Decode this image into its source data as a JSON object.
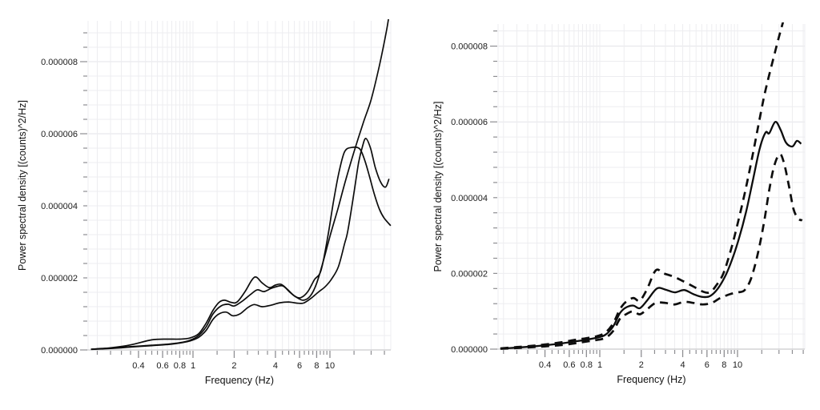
{
  "page": {
    "background": "#ffffff"
  },
  "colors": {
    "curve": "#0d0d0d",
    "grid_minor": "#ededf0",
    "grid_major": "#e3e3e8",
    "axis_line": "#c9c9cc",
    "tick": "#8e8e92",
    "text": "#1c1c1c"
  },
  "chart_data": [
    {
      "id": "psd-left",
      "type": "line",
      "title": "",
      "xlabel": "Frequency (Hz)",
      "ylabel": "Power spectral density [(counts)^2/Hz]",
      "xscale": "log",
      "grid": true,
      "legend": "none",
      "xlim_hz": [
        0.175,
        27.8
      ],
      "ylim": [
        0,
        9.1e-06
      ],
      "x_major_ticks": [
        0.4,
        0.6,
        0.8,
        1,
        2,
        4,
        6,
        8,
        10
      ],
      "x_major_tick_labels": [
        "0.4",
        "0.6",
        "0.8",
        "1",
        "2",
        "4",
        "6",
        "8",
        "10"
      ],
      "x_minor_ticks": [
        0.2,
        0.25,
        0.3,
        0.35,
        0.45,
        0.5,
        0.55,
        0.65,
        0.7,
        0.75,
        0.85,
        0.9,
        0.95,
        1.5,
        2.5,
        3,
        3.5,
        4.5,
        5,
        5.5,
        6.5,
        7,
        7.5,
        8.5,
        9,
        9.5,
        15,
        20,
        25,
        30
      ],
      "y_major_ticks": [
        0,
        2e-06,
        4e-06,
        6e-06,
        8e-06
      ],
      "y_major_tick_labels": [
        "0.000000",
        "0.000002",
        "0.000004",
        "0.000006",
        "0.000008"
      ],
      "y_minor_step": 4e-07,
      "psd_unit_scale": "values below are PSD x 1e-6 (counts)^2/Hz",
      "series": [
        {
          "name": "psd-trace-1",
          "style": "solid",
          "width": 1.7,
          "points": [
            [
              0.18,
              0.02
            ],
            [
              0.25,
              0.06
            ],
            [
              0.35,
              0.14
            ],
            [
              0.5,
              0.28
            ],
            [
              0.65,
              0.3
            ],
            [
              0.8,
              0.3
            ],
            [
              0.95,
              0.33
            ],
            [
              1.1,
              0.45
            ],
            [
              1.25,
              0.75
            ],
            [
              1.4,
              1.1
            ],
            [
              1.55,
              1.32
            ],
            [
              1.7,
              1.38
            ],
            [
              1.9,
              1.32
            ],
            [
              2.1,
              1.33
            ],
            [
              2.4,
              1.62
            ],
            [
              2.7,
              1.95
            ],
            [
              2.9,
              2.02
            ],
            [
              3.2,
              1.86
            ],
            [
              3.6,
              1.73
            ],
            [
              4.0,
              1.8
            ],
            [
              4.4,
              1.82
            ],
            [
              4.9,
              1.68
            ],
            [
              5.5,
              1.5
            ],
            [
              6.1,
              1.45
            ],
            [
              6.9,
              1.62
            ],
            [
              7.7,
              1.95
            ],
            [
              8.6,
              2.2
            ],
            [
              9.6,
              3.1
            ],
            [
              10.6,
              4.1
            ],
            [
              11.6,
              4.9
            ],
            [
              12.8,
              5.5
            ],
            [
              14.5,
              5.62
            ],
            [
              16.5,
              5.58
            ],
            [
              18.0,
              5.25
            ],
            [
              19.5,
              4.8
            ],
            [
              21.0,
              4.35
            ],
            [
              23.0,
              3.9
            ],
            [
              25.0,
              3.65
            ],
            [
              27.8,
              3.45
            ]
          ]
        },
        {
          "name": "psd-trace-2",
          "style": "solid",
          "width": 1.7,
          "points": [
            [
              0.18,
              0.02
            ],
            [
              0.25,
              0.05
            ],
            [
              0.35,
              0.09
            ],
            [
              0.5,
              0.13
            ],
            [
              0.65,
              0.16
            ],
            [
              0.8,
              0.2
            ],
            [
              0.95,
              0.27
            ],
            [
              1.1,
              0.4
            ],
            [
              1.25,
              0.65
            ],
            [
              1.4,
              1.0
            ],
            [
              1.6,
              1.22
            ],
            [
              1.8,
              1.27
            ],
            [
              2.0,
              1.22
            ],
            [
              2.3,
              1.36
            ],
            [
              2.65,
              1.55
            ],
            [
              2.95,
              1.67
            ],
            [
              3.3,
              1.62
            ],
            [
              3.8,
              1.72
            ],
            [
              4.5,
              1.78
            ],
            [
              5.1,
              1.6
            ],
            [
              5.7,
              1.46
            ],
            [
              6.4,
              1.38
            ],
            [
              7.2,
              1.5
            ],
            [
              8.0,
              1.85
            ],
            [
              9.0,
              2.5
            ],
            [
              10.0,
              3.15
            ],
            [
              11.5,
              3.95
            ],
            [
              13.0,
              4.7
            ],
            [
              15.0,
              5.5
            ],
            [
              17.5,
              6.3
            ],
            [
              20.0,
              6.95
            ],
            [
              23.0,
              7.9
            ],
            [
              26.0,
              8.9
            ],
            [
              27.8,
              9.6
            ]
          ]
        },
        {
          "name": "psd-trace-3",
          "style": "solid",
          "width": 1.7,
          "points": [
            [
              0.18,
              0.015
            ],
            [
              0.25,
              0.04
            ],
            [
              0.35,
              0.08
            ],
            [
              0.5,
              0.12
            ],
            [
              0.65,
              0.15
            ],
            [
              0.8,
              0.19
            ],
            [
              0.95,
              0.25
            ],
            [
              1.1,
              0.35
            ],
            [
              1.25,
              0.55
            ],
            [
              1.4,
              0.85
            ],
            [
              1.55,
              1.0
            ],
            [
              1.75,
              1.05
            ],
            [
              1.95,
              0.95
            ],
            [
              2.2,
              1.0
            ],
            [
              2.5,
              1.17
            ],
            [
              2.8,
              1.26
            ],
            [
              3.2,
              1.2
            ],
            [
              3.7,
              1.24
            ],
            [
              4.3,
              1.31
            ],
            [
              5.0,
              1.33
            ],
            [
              5.7,
              1.3
            ],
            [
              6.4,
              1.3
            ],
            [
              7.2,
              1.42
            ],
            [
              8.2,
              1.6
            ],
            [
              9.2,
              1.75
            ],
            [
              10.2,
              1.95
            ],
            [
              11.5,
              2.3
            ],
            [
              12.8,
              2.95
            ],
            [
              13.5,
              3.3
            ],
            [
              14.9,
              4.3
            ],
            [
              16.2,
              5.2
            ],
            [
              17.3,
              5.65
            ],
            [
              18.3,
              5.87
            ],
            [
              19.8,
              5.6
            ],
            [
              21.5,
              5.05
            ],
            [
              23.5,
              4.65
            ],
            [
              25.5,
              4.52
            ],
            [
              27.0,
              4.75
            ]
          ]
        }
      ]
    },
    {
      "id": "psd-right",
      "type": "line",
      "title": "",
      "xlabel": "Frequency (Hz)",
      "ylabel": "Power spectral density [(counts)^2/Hz]",
      "xscale": "log",
      "grid": true,
      "legend": "none",
      "xlim_hz": [
        0.183,
        30.8
      ],
      "ylim": [
        0,
        8.6e-06
      ],
      "x_major_ticks": [
        0.4,
        0.6,
        0.8,
        1,
        2,
        4,
        6,
        8,
        10
      ],
      "x_major_tick_labels": [
        "0.4",
        "0.6",
        "0.8",
        "1",
        "2",
        "4",
        "6",
        "8",
        "10"
      ],
      "x_minor_ticks": [
        0.2,
        0.25,
        0.3,
        0.35,
        0.45,
        0.5,
        0.55,
        0.65,
        0.7,
        0.75,
        0.85,
        0.9,
        0.95,
        1.5,
        2.5,
        3,
        3.5,
        4.5,
        5,
        5.5,
        6.5,
        7,
        7.5,
        8.5,
        9,
        9.5,
        15,
        20,
        25,
        30
      ],
      "y_major_ticks": [
        0,
        2e-06,
        4e-06,
        6e-06,
        8e-06
      ],
      "y_major_tick_labels": [
        "0.000000",
        "0.000002",
        "0.000004",
        "0.000006",
        "0.000008"
      ],
      "y_minor_step": 4e-07,
      "psd_unit_scale": "values below are PSD x 1e-6 (counts)^2/Hz",
      "series": [
        {
          "name": "psd-mean",
          "style": "solid",
          "width": 2.3,
          "points": [
            [
              0.19,
              0.015
            ],
            [
              0.25,
              0.04
            ],
            [
              0.35,
              0.08
            ],
            [
              0.5,
              0.14
            ],
            [
              0.65,
              0.2
            ],
            [
              0.8,
              0.25
            ],
            [
              0.95,
              0.3
            ],
            [
              1.1,
              0.38
            ],
            [
              1.25,
              0.6
            ],
            [
              1.4,
              0.95
            ],
            [
              1.55,
              1.1
            ],
            [
              1.75,
              1.15
            ],
            [
              1.95,
              1.08
            ],
            [
              2.2,
              1.28
            ],
            [
              2.6,
              1.6
            ],
            [
              3.0,
              1.57
            ],
            [
              3.5,
              1.5
            ],
            [
              4.1,
              1.56
            ],
            [
              4.8,
              1.45
            ],
            [
              5.5,
              1.38
            ],
            [
              6.3,
              1.4
            ],
            [
              7.2,
              1.6
            ],
            [
              8.2,
              1.95
            ],
            [
              9.2,
              2.4
            ],
            [
              10.2,
              2.9
            ],
            [
              11.5,
              3.6
            ],
            [
              13.0,
              4.5
            ],
            [
              14.5,
              5.3
            ],
            [
              16.0,
              5.72
            ],
            [
              17.0,
              5.7
            ],
            [
              18.8,
              6.0
            ],
            [
              20.5,
              5.8
            ],
            [
              22.5,
              5.45
            ],
            [
              25.0,
              5.35
            ],
            [
              27.0,
              5.5
            ],
            [
              29.0,
              5.42
            ]
          ]
        },
        {
          "name": "psd-upper-bound",
          "style": "dashed",
          "width": 2.7,
          "points": [
            [
              0.19,
              0.02
            ],
            [
              0.25,
              0.055
            ],
            [
              0.35,
              0.1
            ],
            [
              0.5,
              0.17
            ],
            [
              0.65,
              0.24
            ],
            [
              0.8,
              0.29
            ],
            [
              0.95,
              0.34
            ],
            [
              1.1,
              0.44
            ],
            [
              1.25,
              0.68
            ],
            [
              1.4,
              1.05
            ],
            [
              1.55,
              1.25
            ],
            [
              1.75,
              1.35
            ],
            [
              1.95,
              1.28
            ],
            [
              2.2,
              1.58
            ],
            [
              2.55,
              2.08
            ],
            [
              2.9,
              2.0
            ],
            [
              3.4,
              1.92
            ],
            [
              4.0,
              1.8
            ],
            [
              4.8,
              1.65
            ],
            [
              5.6,
              1.52
            ],
            [
              6.3,
              1.5
            ],
            [
              7.0,
              1.68
            ],
            [
              7.9,
              2.0
            ],
            [
              9.0,
              2.65
            ],
            [
              10.0,
              3.3
            ],
            [
              11.5,
              4.25
            ],
            [
              13.0,
              5.2
            ],
            [
              14.5,
              6.1
            ],
            [
              16.0,
              6.85
            ],
            [
              18.0,
              7.6
            ],
            [
              20.0,
              8.25
            ],
            [
              22.0,
              8.8
            ],
            [
              24.0,
              9.4
            ]
          ]
        },
        {
          "name": "psd-lower-bound",
          "style": "dashed",
          "width": 2.7,
          "points": [
            [
              0.19,
              0.01
            ],
            [
              0.25,
              0.03
            ],
            [
              0.35,
              0.06
            ],
            [
              0.5,
              0.1
            ],
            [
              0.65,
              0.15
            ],
            [
              0.8,
              0.2
            ],
            [
              0.95,
              0.24
            ],
            [
              1.1,
              0.3
            ],
            [
              1.25,
              0.48
            ],
            [
              1.4,
              0.8
            ],
            [
              1.55,
              0.92
            ],
            [
              1.75,
              1.0
            ],
            [
              1.95,
              0.92
            ],
            [
              2.2,
              1.05
            ],
            [
              2.55,
              1.22
            ],
            [
              3.0,
              1.22
            ],
            [
              3.5,
              1.18
            ],
            [
              4.1,
              1.25
            ],
            [
              4.8,
              1.22
            ],
            [
              5.6,
              1.18
            ],
            [
              6.5,
              1.22
            ],
            [
              7.5,
              1.35
            ],
            [
              8.8,
              1.45
            ],
            [
              10.0,
              1.5
            ],
            [
              11.2,
              1.55
            ],
            [
              12.5,
              1.85
            ],
            [
              14.0,
              2.5
            ],
            [
              15.5,
              3.3
            ],
            [
              17.0,
              4.2
            ],
            [
              18.5,
              4.85
            ],
            [
              20.3,
              5.15
            ],
            [
              21.8,
              4.9
            ],
            [
              23.5,
              4.35
            ],
            [
              25.5,
              3.7
            ],
            [
              27.5,
              3.45
            ],
            [
              29.5,
              3.4
            ]
          ]
        }
      ]
    }
  ]
}
